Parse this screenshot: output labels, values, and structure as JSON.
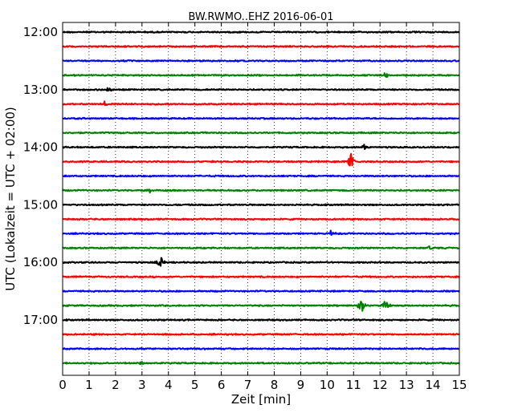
{
  "chart_data": {
    "type": "line",
    "title": "BW.RWMO..EHZ 2016-06-01",
    "xlabel": "Zeit  [min]",
    "ylabel": "UTC (Lokalzeit = UTC + 02:00)",
    "xlim": [
      0,
      15
    ],
    "x_ticks": [
      "0",
      "1",
      "2",
      "3",
      "4",
      "5",
      "6",
      "7",
      "8",
      "9",
      "10",
      "11",
      "12",
      "13",
      "14",
      "15"
    ],
    "y_ticks": [
      "12:00",
      "13:00",
      "14:00",
      "15:00",
      "16:00",
      "17:00"
    ],
    "grid": "vertical-dotted",
    "line_colors": [
      "#000000",
      "#ff0000",
      "#0000ff",
      "#008000"
    ],
    "traces": [
      {
        "start": "12:00",
        "events": []
      },
      {
        "start": "12:15",
        "events": []
      },
      {
        "start": "12:30",
        "events": []
      },
      {
        "start": "12:45",
        "events": [
          {
            "minute": 12.2,
            "amplitude": 0.25
          }
        ]
      },
      {
        "start": "13:00",
        "events": [
          {
            "minute": 1.7,
            "amplitude": 0.25
          }
        ]
      },
      {
        "start": "13:15",
        "events": [
          {
            "minute": 1.6,
            "amplitude": 0.2
          }
        ]
      },
      {
        "start": "13:30",
        "events": []
      },
      {
        "start": "13:45",
        "events": []
      },
      {
        "start": "14:00",
        "events": [
          {
            "minute": 11.4,
            "amplitude": 0.2
          }
        ]
      },
      {
        "start": "14:15",
        "events": [
          {
            "minute": 10.9,
            "amplitude": 0.65
          }
        ]
      },
      {
        "start": "14:30",
        "events": []
      },
      {
        "start": "14:45",
        "events": [
          {
            "minute": 3.3,
            "amplitude": 0.15
          }
        ]
      },
      {
        "start": "15:00",
        "events": []
      },
      {
        "start": "15:15",
        "events": []
      },
      {
        "start": "15:30",
        "events": [
          {
            "minute": 10.1,
            "amplitude": 0.3
          }
        ]
      },
      {
        "start": "15:45",
        "events": [
          {
            "minute": 13.9,
            "amplitude": 0.2
          }
        ]
      },
      {
        "start": "16:00",
        "events": [
          {
            "minute": 3.7,
            "amplitude": 0.55
          }
        ]
      },
      {
        "start": "16:15",
        "events": []
      },
      {
        "start": "16:30",
        "events": []
      },
      {
        "start": "16:45",
        "events": [
          {
            "minute": 11.3,
            "amplitude": 0.7
          },
          {
            "minute": 12.2,
            "amplitude": 0.6
          }
        ]
      },
      {
        "start": "17:00",
        "events": []
      },
      {
        "start": "17:15",
        "events": []
      },
      {
        "start": "17:30",
        "events": []
      },
      {
        "start": "17:45",
        "events": [
          {
            "minute": 3.0,
            "amplitude": 0.12
          }
        ]
      }
    ]
  }
}
